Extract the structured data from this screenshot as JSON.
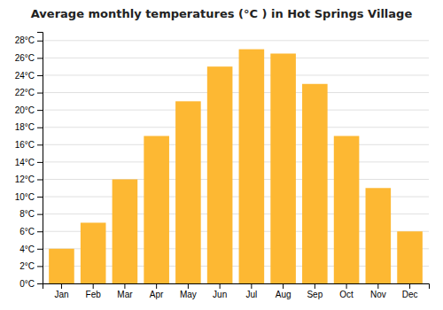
{
  "chart_data": {
    "type": "bar",
    "title": "Average monthly temperatures (°C ) in Hot Springs Village",
    "categories": [
      "Jan",
      "Feb",
      "Mar",
      "Apr",
      "May",
      "Jun",
      "Jul",
      "Aug",
      "Sep",
      "Oct",
      "Nov",
      "Dec"
    ],
    "values": [
      4,
      7,
      12,
      17,
      21,
      25,
      27,
      26.5,
      23,
      17,
      11,
      6
    ],
    "color": "#FDB833",
    "ylim": [
      0,
      29
    ],
    "yticks": [
      {
        "value": 0,
        "label": "0°C"
      },
      {
        "value": 2,
        "label": "2°C"
      },
      {
        "value": 4,
        "label": "4°C"
      },
      {
        "value": 6,
        "label": "6°C"
      },
      {
        "value": 8,
        "label": "8°C"
      },
      {
        "value": 10,
        "label": "10°C"
      },
      {
        "value": 12,
        "label": "12°C"
      },
      {
        "value": 14,
        "label": "14°C"
      },
      {
        "value": 16,
        "label": "16°C"
      },
      {
        "value": 18,
        "label": "18°C"
      },
      {
        "value": 20,
        "label": "20°C"
      },
      {
        "value": 22,
        "label": "22°C"
      },
      {
        "value": 24,
        "label": "24°C"
      },
      {
        "value": 26,
        "label": "26°C"
      },
      {
        "value": 28,
        "label": "28°C"
      }
    ],
    "grid": true
  }
}
